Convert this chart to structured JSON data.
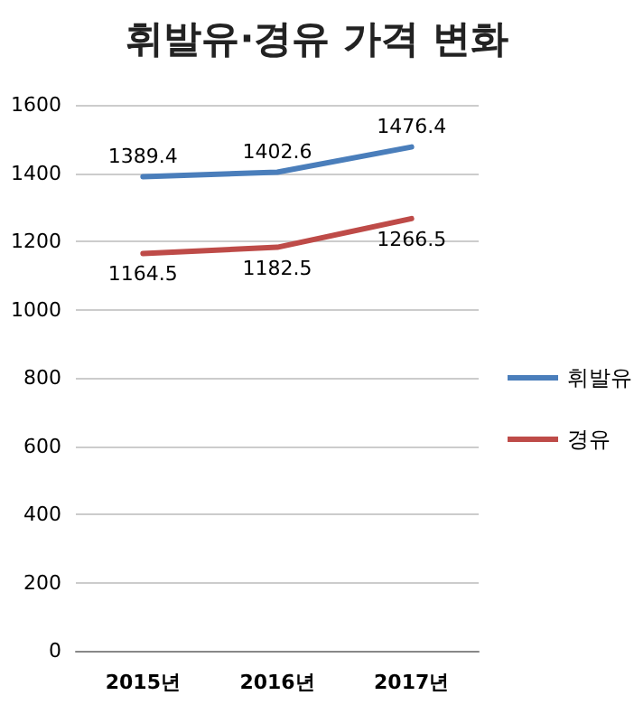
{
  "chart_data": {
    "type": "line",
    "title": "휘발유·경유 가격 변화",
    "categories": [
      "2015년",
      "2016년",
      "2017년"
    ],
    "series": [
      {
        "name": "휘발유",
        "color": "#4a7ebb",
        "values": [
          1389.4,
          1402.6,
          1476.4
        ]
      },
      {
        "name": "경유",
        "color": "#be4b48",
        "values": [
          1164.5,
          1182.5,
          1266.5
        ]
      }
    ],
    "ylim": [
      0,
      1600
    ],
    "yticks": [
      0,
      200,
      400,
      600,
      800,
      1000,
      1200,
      1400,
      1600
    ],
    "grid": "y",
    "legend": "right",
    "marker": "none",
    "line_style": "solid",
    "data_labels": true
  }
}
